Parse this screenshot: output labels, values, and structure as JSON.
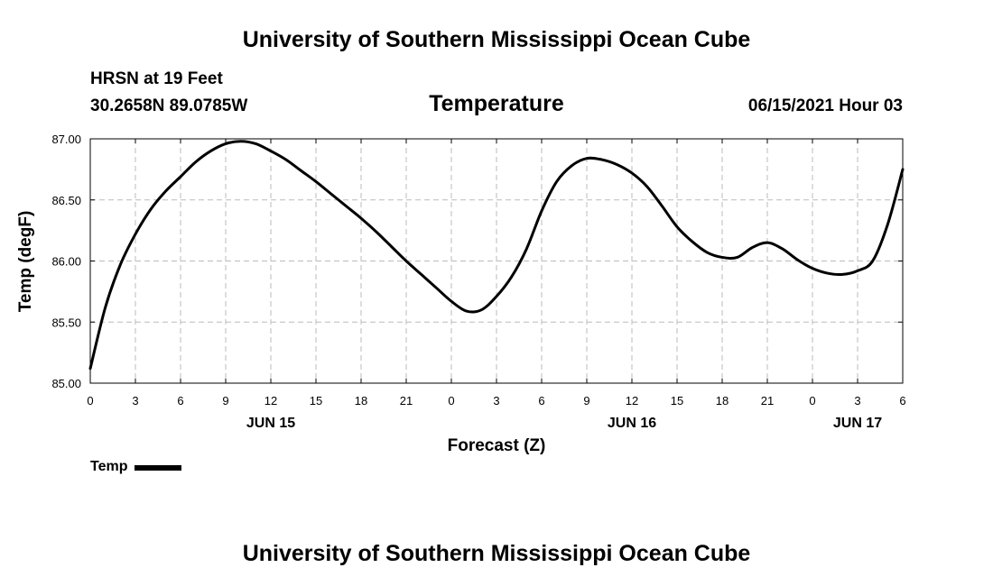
{
  "header": {
    "top_title": "University of Southern Mississippi Ocean Cube",
    "bottom_title": "University of Southern Mississippi Ocean Cube",
    "station": "HRSN at 19 Feet",
    "coordinates": "30.2658N  89.0785W",
    "datetime": "06/15/2021 Hour 03"
  },
  "chart_data": {
    "type": "line",
    "title": "Temperature",
    "xlabel": "Forecast (Z)",
    "ylabel": "Temp (degF)",
    "ylim": [
      85.0,
      87.0
    ],
    "xlim": [
      0,
      54
    ],
    "y_ticks": [
      85.0,
      85.5,
      86.0,
      86.5,
      87.0
    ],
    "y_tick_labels": [
      "85.00",
      "85.50",
      "86.00",
      "86.50",
      "87.00"
    ],
    "x_ticks": [
      0,
      3,
      6,
      9,
      12,
      15,
      18,
      21,
      24,
      27,
      30,
      33,
      36,
      39,
      42,
      45,
      48,
      51,
      54
    ],
    "x_tick_labels": [
      "0",
      "3",
      "6",
      "9",
      "12",
      "15",
      "18",
      "21",
      "0",
      "3",
      "6",
      "9",
      "12",
      "15",
      "18",
      "21",
      "0",
      "3",
      "6"
    ],
    "day_labels": [
      {
        "x": 12,
        "label": "JUN 15"
      },
      {
        "x": 36,
        "label": "JUN 16"
      },
      {
        "x": 51,
        "label": "JUN 17"
      }
    ],
    "grid": true,
    "legend": "bottom-left",
    "series": [
      {
        "name": "Temp",
        "color": "#000000",
        "x": [
          0,
          1,
          2,
          3,
          4,
          5,
          6,
          7,
          8,
          9,
          10,
          11,
          12,
          13,
          14,
          15,
          16,
          17,
          18,
          19,
          20,
          21,
          22,
          23,
          24,
          25,
          26,
          27,
          28,
          29,
          30,
          31,
          32,
          33,
          34,
          35,
          36,
          37,
          38,
          39,
          40,
          41,
          42,
          43,
          44,
          45,
          46,
          47,
          48,
          49,
          50,
          51,
          52,
          53,
          54
        ],
        "values": [
          85.12,
          85.62,
          85.97,
          86.22,
          86.42,
          86.57,
          86.69,
          86.81,
          86.9,
          86.96,
          86.98,
          86.96,
          86.9,
          86.83,
          86.74,
          86.65,
          86.55,
          86.45,
          86.35,
          86.24,
          86.12,
          86.0,
          85.89,
          85.78,
          85.67,
          85.59,
          85.6,
          85.71,
          85.87,
          86.1,
          86.41,
          86.65,
          86.78,
          86.84,
          86.83,
          86.79,
          86.72,
          86.61,
          86.45,
          86.28,
          86.16,
          86.07,
          86.03,
          86.03,
          86.11,
          86.15,
          86.1,
          86.01,
          85.94,
          85.9,
          85.89,
          85.92,
          86.0,
          86.3,
          86.75
        ]
      }
    ]
  }
}
